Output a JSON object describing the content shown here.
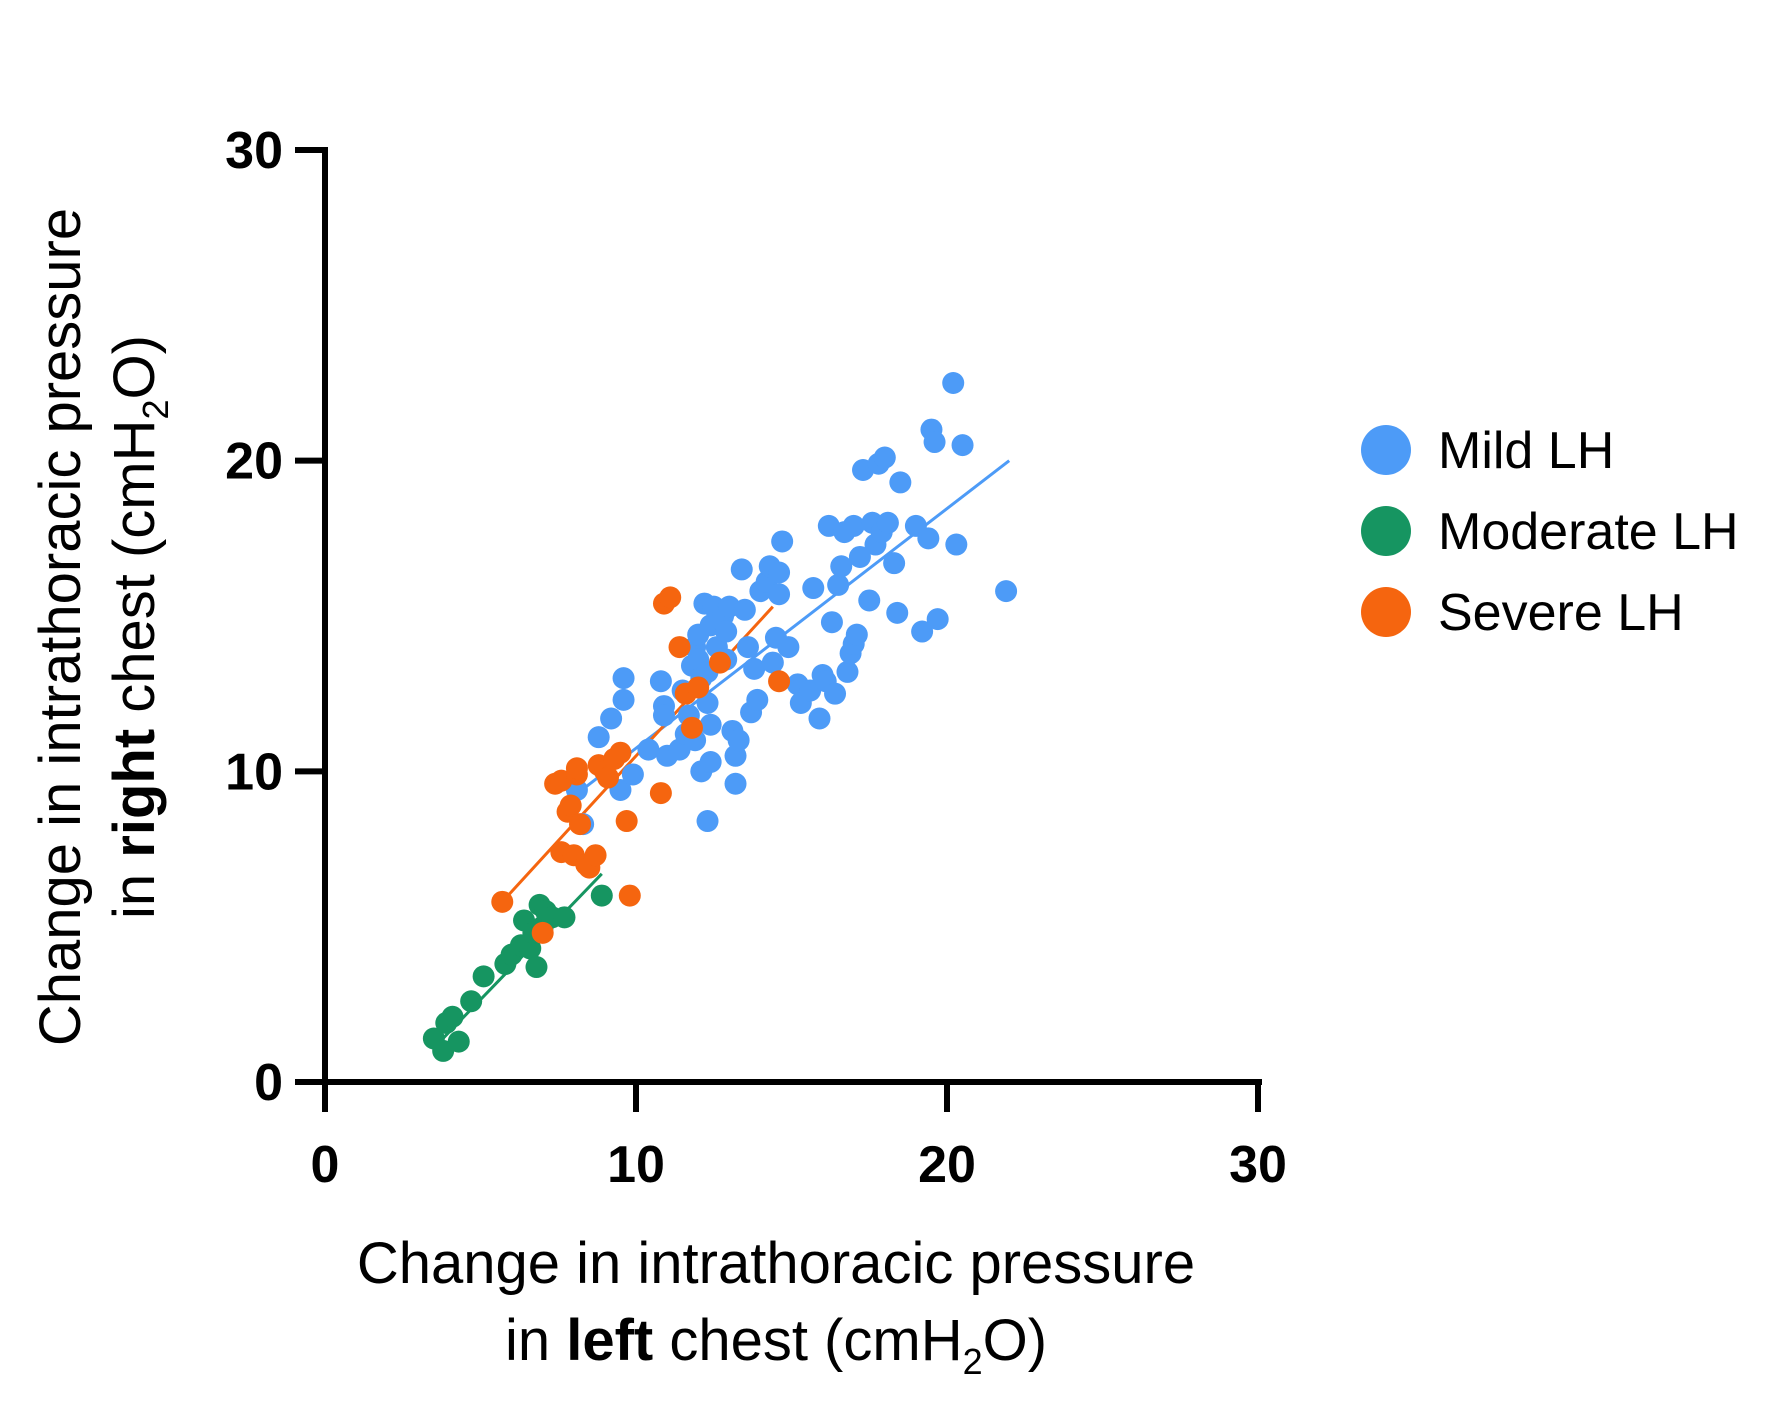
{
  "chart_data": {
    "type": "scatter",
    "xlabel": {
      "line1": "Change in intrathoracic pressure",
      "line2_prefix": "in ",
      "line2_bold": "left",
      "line2_mid": " chest (cmH",
      "line2_sub": "2",
      "line2_suffix": "O)"
    },
    "ylabel": {
      "line1": "Change in intrathoracic pressure",
      "line2_prefix": "in ",
      "line2_bold": "right",
      "line2_mid": " chest (cmH",
      "line2_sub": "2",
      "line2_suffix": "O)"
    },
    "xlim": [
      0,
      30
    ],
    "ylim": [
      0,
      30
    ],
    "xticks": [
      "0",
      "10",
      "20",
      "30"
    ],
    "yticks": [
      "0",
      "10",
      "20",
      "30"
    ],
    "legend_position": "right",
    "grid": false,
    "series": [
      {
        "name": "Mild LH",
        "color": "#4d9bf7",
        "fit": [
          [
            8.0,
            9.2
          ],
          [
            22.0,
            20.0
          ]
        ],
        "points": [
          [
            8.1,
            9.4
          ],
          [
            8.3,
            8.3
          ],
          [
            8.8,
            11.1
          ],
          [
            9.2,
            11.7
          ],
          [
            9.6,
            13.0
          ],
          [
            9.6,
            12.3
          ],
          [
            9.5,
            9.4
          ],
          [
            9.9,
            9.9
          ],
          [
            10.4,
            10.7
          ],
          [
            10.8,
            12.9
          ],
          [
            10.9,
            12.1
          ],
          [
            10.9,
            11.8
          ],
          [
            11.0,
            10.5
          ],
          [
            11.4,
            10.7
          ],
          [
            11.5,
            12.6
          ],
          [
            11.6,
            11.2
          ],
          [
            11.7,
            11.8
          ],
          [
            11.8,
            13.4
          ],
          [
            11.9,
            14.0
          ],
          [
            11.9,
            11.0
          ],
          [
            12.0,
            13.6
          ],
          [
            12.0,
            14.4
          ],
          [
            12.1,
            13.0
          ],
          [
            12.2,
            15.4
          ],
          [
            12.3,
            13.2
          ],
          [
            12.3,
            12.2
          ],
          [
            12.4,
            14.7
          ],
          [
            12.4,
            11.5
          ],
          [
            12.1,
            10.0
          ],
          [
            12.4,
            10.3
          ],
          [
            12.5,
            15.3
          ],
          [
            12.6,
            14.0
          ],
          [
            12.7,
            14.9
          ],
          [
            12.8,
            15.0
          ],
          [
            12.9,
            14.5
          ],
          [
            13.0,
            15.3
          ],
          [
            12.9,
            13.6
          ],
          [
            13.1,
            11.3
          ],
          [
            13.2,
            10.5
          ],
          [
            13.2,
            9.6
          ],
          [
            12.3,
            8.4
          ],
          [
            13.3,
            11.0
          ],
          [
            13.4,
            16.5
          ],
          [
            13.5,
            15.2
          ],
          [
            13.6,
            14.0
          ],
          [
            13.7,
            11.9
          ],
          [
            13.8,
            13.3
          ],
          [
            13.9,
            12.3
          ],
          [
            14.0,
            15.8
          ],
          [
            14.2,
            16.1
          ],
          [
            14.3,
            16.6
          ],
          [
            14.4,
            13.5
          ],
          [
            14.5,
            14.3
          ],
          [
            14.6,
            16.4
          ],
          [
            14.6,
            15.7
          ],
          [
            14.7,
            17.4
          ],
          [
            14.9,
            14.0
          ],
          [
            15.2,
            12.8
          ],
          [
            15.3,
            12.2
          ],
          [
            15.6,
            12.6
          ],
          [
            15.7,
            15.9
          ],
          [
            15.9,
            11.7
          ],
          [
            16.0,
            13.1
          ],
          [
            16.1,
            12.9
          ],
          [
            16.2,
            17.9
          ],
          [
            16.3,
            14.8
          ],
          [
            16.4,
            12.5
          ],
          [
            16.5,
            16.0
          ],
          [
            16.6,
            16.6
          ],
          [
            16.7,
            17.7
          ],
          [
            16.8,
            13.2
          ],
          [
            16.9,
            13.8
          ],
          [
            17.0,
            17.9
          ],
          [
            17.0,
            14.1
          ],
          [
            17.1,
            14.4
          ],
          [
            17.2,
            16.9
          ],
          [
            17.3,
            19.7
          ],
          [
            17.5,
            15.5
          ],
          [
            17.6,
            18.0
          ],
          [
            17.7,
            17.3
          ],
          [
            17.8,
            19.9
          ],
          [
            17.9,
            17.7
          ],
          [
            18.0,
            20.1
          ],
          [
            18.1,
            18.0
          ],
          [
            18.3,
            16.7
          ],
          [
            18.4,
            15.1
          ],
          [
            18.5,
            19.3
          ],
          [
            19.0,
            17.9
          ],
          [
            19.2,
            14.5
          ],
          [
            19.4,
            17.5
          ],
          [
            19.5,
            21.0
          ],
          [
            19.6,
            20.6
          ],
          [
            19.7,
            14.9
          ],
          [
            20.2,
            22.5
          ],
          [
            20.3,
            17.3
          ],
          [
            20.5,
            20.5
          ],
          [
            21.9,
            15.8
          ]
        ]
      },
      {
        "name": "Moderate LH",
        "color": "#169561",
        "fit": [
          [
            3.6,
            1.2
          ],
          [
            8.9,
            6.7
          ]
        ],
        "points": [
          [
            3.5,
            1.4
          ],
          [
            3.8,
            1.0
          ],
          [
            3.9,
            1.9
          ],
          [
            4.1,
            2.1
          ],
          [
            4.3,
            1.3
          ],
          [
            4.7,
            2.6
          ],
          [
            5.1,
            3.4
          ],
          [
            5.8,
            3.8
          ],
          [
            6.0,
            4.1
          ],
          [
            6.3,
            4.4
          ],
          [
            6.4,
            5.2
          ],
          [
            6.6,
            4.3
          ],
          [
            6.7,
            4.8
          ],
          [
            6.8,
            3.7
          ],
          [
            6.9,
            5.7
          ],
          [
            7.0,
            5.0
          ],
          [
            7.1,
            5.5
          ],
          [
            7.3,
            5.3
          ],
          [
            7.7,
            5.3
          ],
          [
            8.9,
            6.0
          ]
        ]
      },
      {
        "name": "Severe LH",
        "color": "#f5650f",
        "fit": [
          [
            5.7,
            5.8
          ],
          [
            14.4,
            15.3
          ]
        ],
        "points": [
          [
            5.7,
            5.8
          ],
          [
            7.0,
            4.8
          ],
          [
            7.4,
            9.6
          ],
          [
            7.6,
            7.4
          ],
          [
            7.6,
            9.7
          ],
          [
            7.8,
            8.7
          ],
          [
            7.9,
            8.9
          ],
          [
            8.0,
            7.3
          ],
          [
            8.1,
            9.9
          ],
          [
            8.1,
            10.1
          ],
          [
            8.2,
            8.3
          ],
          [
            8.4,
            7.0
          ],
          [
            8.5,
            6.9
          ],
          [
            8.7,
            7.3
          ],
          [
            8.8,
            10.2
          ],
          [
            9.0,
            10.0
          ],
          [
            9.1,
            9.8
          ],
          [
            9.3,
            10.4
          ],
          [
            9.5,
            10.6
          ],
          [
            9.7,
            8.4
          ],
          [
            9.8,
            6.0
          ],
          [
            10.8,
            9.3
          ],
          [
            10.9,
            15.4
          ],
          [
            11.1,
            15.6
          ],
          [
            11.4,
            14.0
          ],
          [
            11.6,
            12.5
          ],
          [
            11.8,
            11.4
          ],
          [
            12.0,
            12.7
          ],
          [
            12.7,
            13.5
          ],
          [
            14.6,
            12.9
          ]
        ]
      }
    ]
  }
}
